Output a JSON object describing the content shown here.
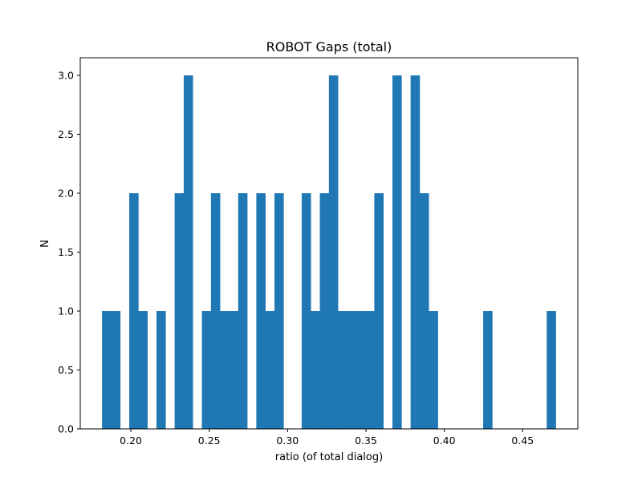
{
  "chart_data": {
    "type": "bar",
    "title": "ROBOT Gaps (total)",
    "xlabel": "ratio (of total dialog)",
    "ylabel": "N",
    "xlim": [
      0.1677,
      0.4852
    ],
    "ylim": [
      0,
      3.15
    ],
    "x_ticks": [
      "0.20",
      "0.25",
      "0.30",
      "0.35",
      "0.40",
      "0.45"
    ],
    "x_tick_values": [
      0.2,
      0.25,
      0.3,
      0.35,
      0.4,
      0.45
    ],
    "y_ticks": [
      "0.0",
      "0.5",
      "1.0",
      "1.5",
      "2.0",
      "2.5",
      "3.0"
    ],
    "y_tick_values": [
      0,
      0.5,
      1,
      1.5,
      2,
      2.5,
      3
    ],
    "bin_start": 0.1816,
    "bin_width": 0.005791,
    "counts": [
      1,
      1,
      0,
      2,
      1,
      0,
      1,
      0,
      2,
      3,
      0,
      1,
      2,
      1,
      1,
      2,
      0,
      2,
      1,
      2,
      0,
      0,
      2,
      1,
      2,
      3,
      1,
      1,
      1,
      1,
      2,
      0,
      3,
      0,
      3,
      2,
      1,
      0,
      0,
      0,
      0,
      0,
      1,
      0,
      0,
      0,
      0,
      0,
      0,
      1
    ],
    "bar_color": "#1f77b4",
    "grid": false,
    "legend": "none"
  }
}
